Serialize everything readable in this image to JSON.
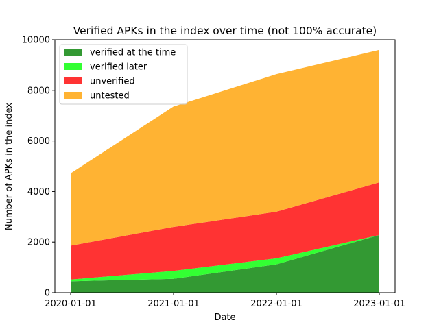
{
  "chart_data": {
    "type": "area",
    "stacked": true,
    "title": "Verified APKs in the index over time (not 100% accurate)",
    "xlabel": "Date",
    "ylabel": "Number of APKs in the index",
    "x": [
      "2020-01-01",
      "2021-01-01",
      "2022-01-01",
      "2023-01-01"
    ],
    "ylim": [
      0,
      10000
    ],
    "yticks": [
      0,
      2000,
      4000,
      6000,
      8000,
      10000
    ],
    "legend_position": "top-left",
    "grid": false,
    "series": [
      {
        "name": "verified at the time",
        "color": "#339933",
        "values": [
          450,
          550,
          1120,
          2280
        ]
      },
      {
        "name": "verified later",
        "color": "#33ff33",
        "values": [
          70,
          310,
          240,
          0
        ]
      },
      {
        "name": "unverified",
        "color": "#ff3333",
        "values": [
          1340,
          1740,
          1840,
          2080
        ]
      },
      {
        "name": "untested",
        "color": "#ffb333",
        "values": [
          2860,
          4760,
          5440,
          5240
        ]
      }
    ]
  }
}
